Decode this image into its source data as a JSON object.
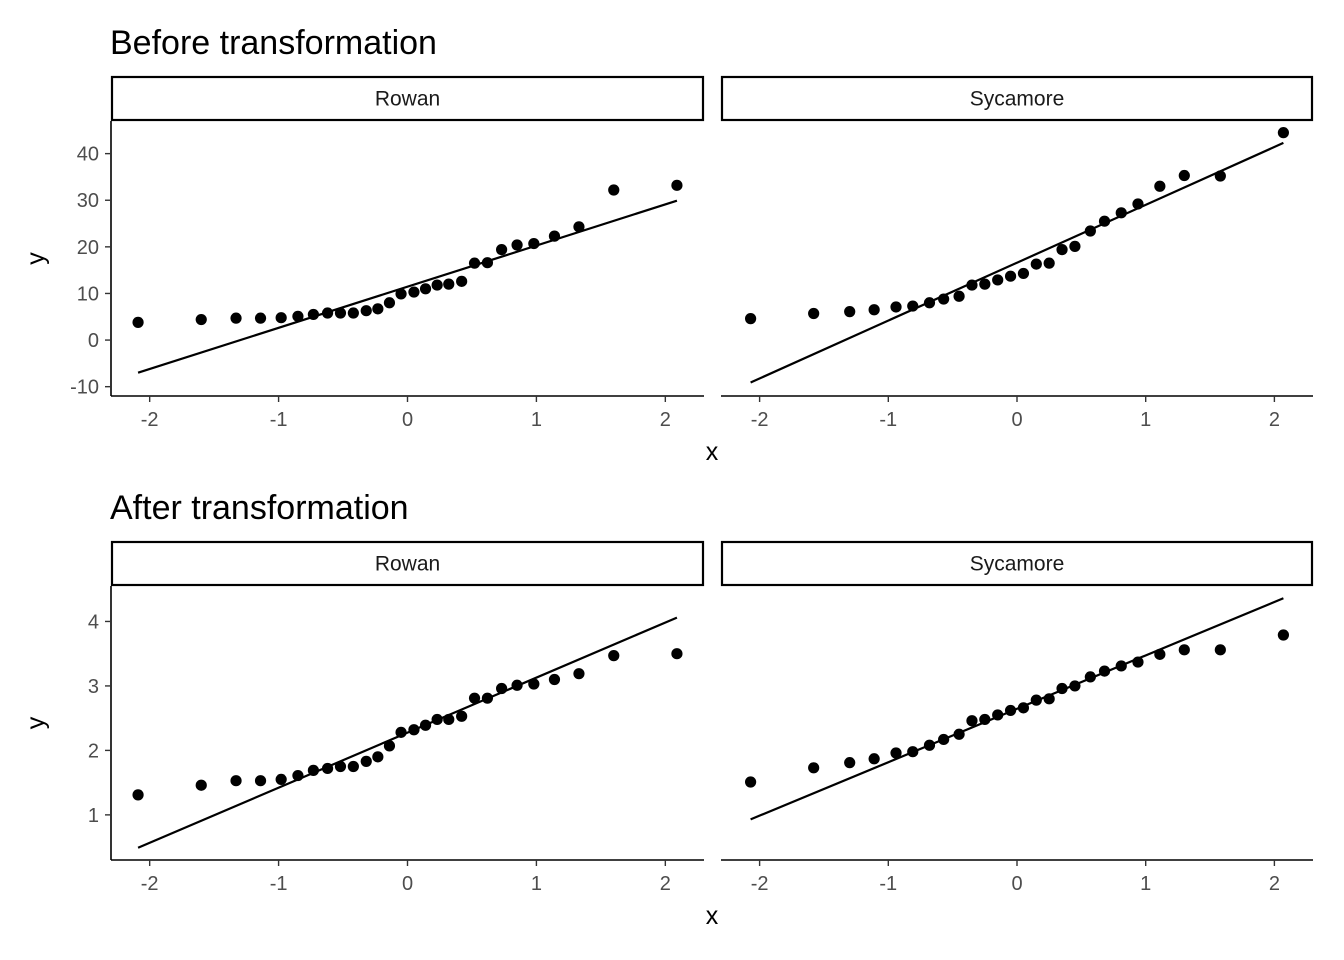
{
  "chart_data": [
    {
      "type": "scatter",
      "title": "Before transformation",
      "xlabel": "x",
      "ylabel": "y",
      "xlim": [
        -2.3,
        2.3
      ],
      "ylim": [
        -12,
        47
      ],
      "grid": false,
      "xticks": [
        -2,
        -1,
        0,
        1,
        2
      ],
      "xtick_labels": [
        "-2",
        "-1",
        "0",
        "1",
        "2"
      ],
      "yticks": [
        -10,
        0,
        10,
        20,
        30,
        40
      ],
      "ytick_labels": [
        "-10",
        "0",
        "10",
        "20",
        "30",
        "40"
      ],
      "facets": [
        {
          "label": "Rowan",
          "points": {
            "x": [
              -2.09,
              -1.6,
              -1.33,
              -1.14,
              -0.98,
              -0.85,
              -0.73,
              -0.62,
              -0.52,
              -0.42,
              -0.32,
              -0.23,
              -0.14,
              -0.05,
              0.05,
              0.14,
              0.23,
              0.32,
              0.42,
              0.52,
              0.62,
              0.73,
              0.85,
              0.98,
              1.14,
              1.33,
              1.6,
              2.09
            ],
            "y": [
              3.8,
              4.4,
              4.7,
              4.7,
              4.8,
              5.1,
              5.5,
              5.8,
              5.8,
              5.8,
              6.3,
              6.7,
              8.0,
              9.9,
              10.3,
              11.0,
              11.8,
              12.0,
              12.6,
              16.5,
              16.6,
              19.4,
              20.4,
              20.7,
              22.3,
              24.3,
              32.2,
              33.2
            ]
          },
          "line": {
            "x": [
              -2.09,
              2.09
            ],
            "y": [
              -7.0,
              29.9
            ]
          }
        },
        {
          "label": "Sycamore",
          "points": {
            "x": [
              -2.07,
              -1.58,
              -1.3,
              -1.11,
              -0.94,
              -0.81,
              -0.68,
              -0.57,
              -0.45,
              -0.35,
              -0.25,
              -0.15,
              -0.05,
              0.05,
              0.15,
              0.25,
              0.35,
              0.45,
              0.57,
              0.68,
              0.81,
              0.94,
              1.11,
              1.3,
              1.58,
              2.07
            ],
            "y": [
              4.6,
              5.7,
              6.1,
              6.5,
              7.1,
              7.3,
              8.0,
              8.8,
              9.4,
              11.8,
              12.0,
              12.9,
              13.7,
              14.3,
              16.3,
              16.5,
              19.4,
              20.1,
              23.4,
              25.5,
              27.3,
              29.2,
              33.0,
              35.3,
              35.2,
              44.5
            ]
          },
          "line": {
            "x": [
              -2.07,
              2.07
            ],
            "y": [
              -9.1,
              42.3
            ]
          }
        }
      ]
    },
    {
      "type": "scatter",
      "title": "After transformation",
      "xlabel": "x",
      "ylabel": "y",
      "xlim": [
        -2.3,
        2.3
      ],
      "ylim": [
        0.3,
        4.55
      ],
      "grid": false,
      "xticks": [
        -2,
        -1,
        0,
        1,
        2
      ],
      "xtick_labels": [
        "-2",
        "-1",
        "0",
        "1",
        "2"
      ],
      "yticks": [
        1,
        2,
        3,
        4
      ],
      "ytick_labels": [
        "1",
        "2",
        "3",
        "4"
      ],
      "facets": [
        {
          "label": "Rowan",
          "points": {
            "x": [
              -2.09,
              -1.6,
              -1.33,
              -1.14,
              -0.98,
              -0.85,
              -0.73,
              -0.62,
              -0.52,
              -0.42,
              -0.32,
              -0.23,
              -0.14,
              -0.05,
              0.05,
              0.14,
              0.23,
              0.32,
              0.42,
              0.52,
              0.62,
              0.73,
              0.85,
              0.98,
              1.14,
              1.33,
              1.6,
              2.09
            ],
            "y": [
              1.31,
              1.46,
              1.53,
              1.53,
              1.55,
              1.61,
              1.69,
              1.72,
              1.75,
              1.75,
              1.83,
              1.9,
              2.07,
              2.28,
              2.32,
              2.39,
              2.48,
              2.48,
              2.53,
              2.81,
              2.81,
              2.96,
              3.01,
              3.03,
              3.1,
              3.19,
              3.47,
              3.5
            ]
          },
          "line": {
            "x": [
              -2.09,
              2.09
            ],
            "y": [
              0.49,
              4.06
            ]
          }
        },
        {
          "label": "Sycamore",
          "points": {
            "x": [
              -2.07,
              -1.58,
              -1.3,
              -1.11,
              -0.94,
              -0.81,
              -0.68,
              -0.57,
              -0.45,
              -0.35,
              -0.25,
              -0.15,
              -0.05,
              0.05,
              0.15,
              0.25,
              0.35,
              0.45,
              0.57,
              0.68,
              0.81,
              0.94,
              1.11,
              1.3,
              1.58,
              2.07
            ],
            "y": [
              1.51,
              1.73,
              1.81,
              1.87,
              1.96,
              1.98,
              2.08,
              2.17,
              2.25,
              2.46,
              2.48,
              2.55,
              2.62,
              2.66,
              2.78,
              2.8,
              2.96,
              3.0,
              3.14,
              3.23,
              3.31,
              3.37,
              3.49,
              3.56,
              3.56,
              3.79
            ]
          },
          "line": {
            "x": [
              -2.07,
              2.07
            ],
            "y": [
              0.93,
              4.36
            ]
          }
        }
      ]
    }
  ]
}
